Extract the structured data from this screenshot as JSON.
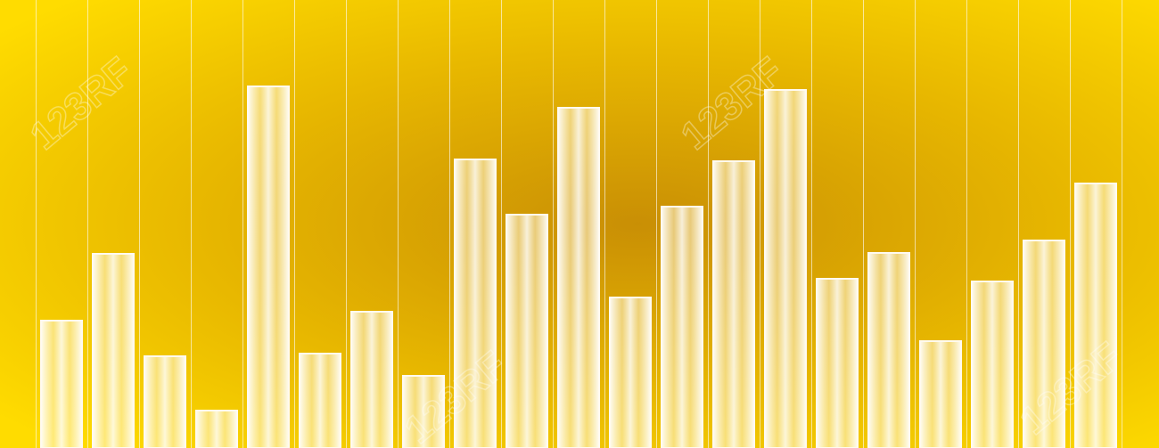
{
  "chart_data": {
    "type": "bar",
    "categories": [
      null,
      null,
      null,
      null,
      null,
      null,
      null,
      null,
      null,
      null,
      null,
      null,
      null,
      null,
      null,
      null,
      null,
      null,
      null,
      null,
      null
    ],
    "values": [
      143,
      218,
      103,
      42,
      406,
      106,
      153,
      81,
      324,
      262,
      382,
      169,
      271,
      322,
      402,
      190,
      219,
      120,
      187,
      233,
      297
    ],
    "color": "#fffaf0",
    "ylim": [
      0,
      503
    ],
    "watermark": "123RF"
  }
}
